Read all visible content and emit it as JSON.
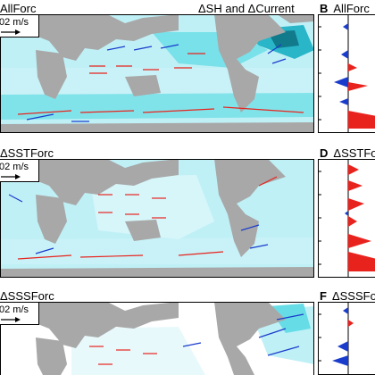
{
  "figure": {
    "top_title": "ΔSH and ΔCurrent"
  },
  "chart_data": [
    {
      "type": "map",
      "panel_label": "AllForc",
      "scale_label": "02 m/s",
      "colors": {
        "land": "#a8a8a8",
        "ocean_low": "#bff0f6",
        "ocean_mid": "#66dde6",
        "ocean_high": "#29b6c9",
        "ocean_dark": "#117a8b",
        "positive_arrow": "#e8231e",
        "negative_arrow": "#1a3ccc"
      }
    },
    {
      "type": "area",
      "panel_label": "B AllForc",
      "description": "vertical profile, red = positive, blue = negative"
    },
    {
      "type": "map",
      "panel_label": "ΔSSTForc",
      "scale_label": "02 m/s"
    },
    {
      "type": "area",
      "panel_label": "D ΔSSTForc"
    },
    {
      "type": "map",
      "panel_label": "ΔSSSForc",
      "scale_label": "02 m/s"
    },
    {
      "type": "area",
      "panel_label": "F ΔSSSForc"
    }
  ]
}
